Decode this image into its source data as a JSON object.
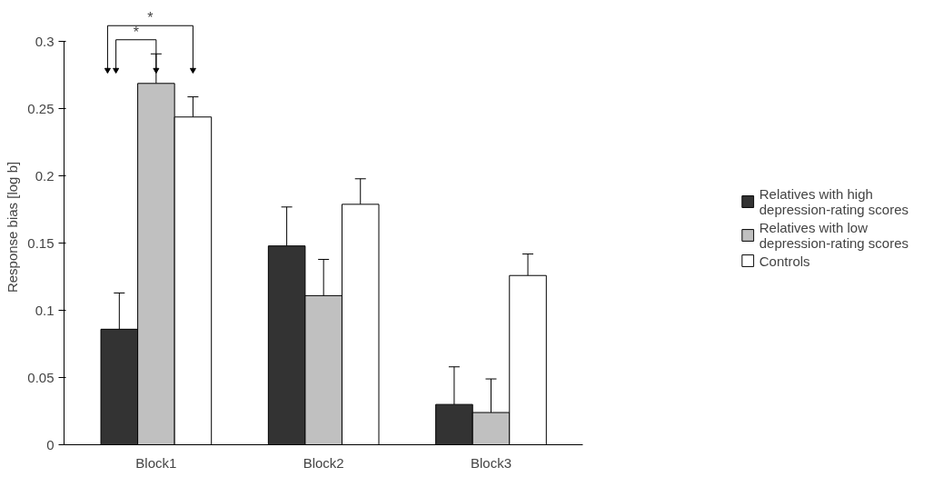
{
  "chart_data": {
    "type": "bar",
    "ylabel": "Response bias [log b]",
    "categories": [
      "Block1",
      "Block2",
      "Block3"
    ],
    "series": [
      {
        "name": "Relatives with high depression-rating scores",
        "color": "#333333",
        "values": [
          0.086,
          0.148,
          0.03
        ],
        "errors": [
          [
            0.086,
            0.113
          ],
          [
            0.148,
            0.177
          ],
          [
            0.03,
            0.058
          ]
        ]
      },
      {
        "name": "Relatives with low depression-rating scores",
        "color": "#c0c0c0",
        "values": [
          0.269,
          0.111,
          0.024
        ],
        "errors": [
          [
            0.269,
            0.291
          ],
          [
            0.111,
            0.138
          ],
          [
            0.024,
            0.049
          ]
        ]
      },
      {
        "name": "Controls",
        "color": "#ffffff",
        "values": [
          0.244,
          0.179,
          0.126
        ],
        "errors": [
          [
            0.244,
            0.259
          ],
          [
            0.179,
            0.198
          ],
          [
            0.126,
            0.142
          ]
        ]
      }
    ],
    "ylim": [
      0,
      0.3
    ],
    "yticks": [
      0,
      0.05,
      0.1,
      0.15,
      0.2,
      0.25,
      0.3
    ],
    "grid": false,
    "legend": "right",
    "annotations": [
      "*",
      "*"
    ]
  }
}
